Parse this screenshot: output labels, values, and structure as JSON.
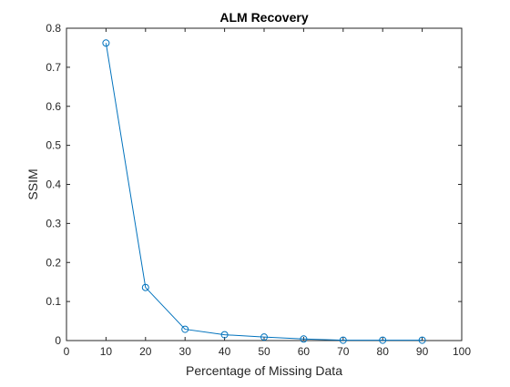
{
  "chart_data": {
    "type": "line",
    "title": "ALM Recovery",
    "xlabel": "Percentage of Missing Data",
    "ylabel": "SSIM",
    "xlim": [
      0,
      100
    ],
    "ylim": [
      0,
      0.8
    ],
    "xticks": [
      "0",
      "10",
      "20",
      "30",
      "40",
      "50",
      "60",
      "70",
      "80",
      "90",
      "100"
    ],
    "yticks": [
      "0",
      "0.1",
      "0.2",
      "0.3",
      "0.4",
      "0.5",
      "0.6",
      "0.7",
      "0.8"
    ],
    "grid": false,
    "legend": "none",
    "marker": "circle",
    "series": [
      {
        "color": "#0072BD",
        "x": [
          10,
          20,
          30,
          40,
          50,
          60,
          70,
          80,
          90
        ],
        "y": [
          0.762,
          0.136,
          0.029,
          0.015,
          0.009,
          0.004,
          0.001,
          0.001,
          0.001
        ]
      }
    ]
  }
}
